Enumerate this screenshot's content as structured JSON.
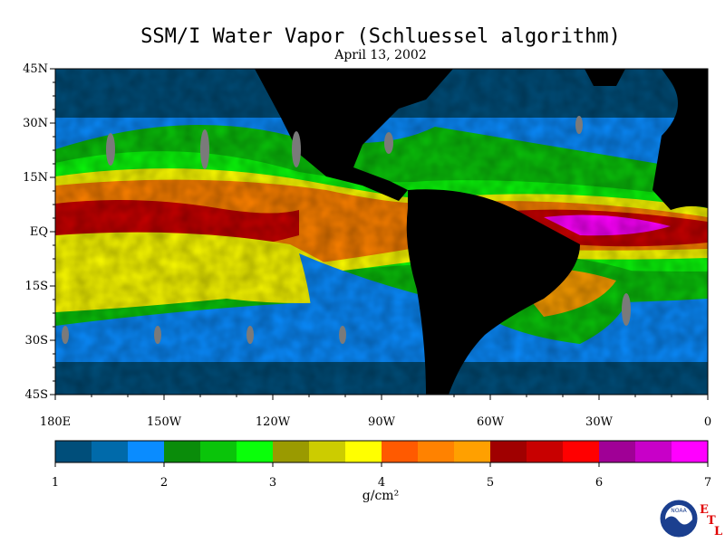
{
  "title": "SSM/I Water Vapor (Schluessel algorithm)",
  "date": "April 13, 2002",
  "lat_labels": [
    "45N",
    "30N",
    "15N",
    "EQ",
    "15S",
    "30S",
    "45S"
  ],
  "lon_labels": [
    "180E",
    "150W",
    "120W",
    "90W",
    "60W",
    "30W",
    "0"
  ],
  "colorbar": {
    "colors": [
      "#004e7a",
      "#006aaa",
      "#0a8cff",
      "#0a8c0a",
      "#0ac40a",
      "#0aff0a",
      "#9a9a00",
      "#cccc00",
      "#ffff00",
      "#ff5a00",
      "#ff8200",
      "#ffa000",
      "#a00000",
      "#c80000",
      "#ff0000",
      "#a00096",
      "#c800c8",
      "#ff00ff"
    ],
    "tick_labels": [
      "1",
      "2",
      "3",
      "4",
      "5",
      "6",
      "7"
    ],
    "unit_text": "g/cm²"
  },
  "logo": {
    "noaa": "NOAA",
    "etl_letters": [
      "E",
      "T",
      "L"
    ]
  }
}
